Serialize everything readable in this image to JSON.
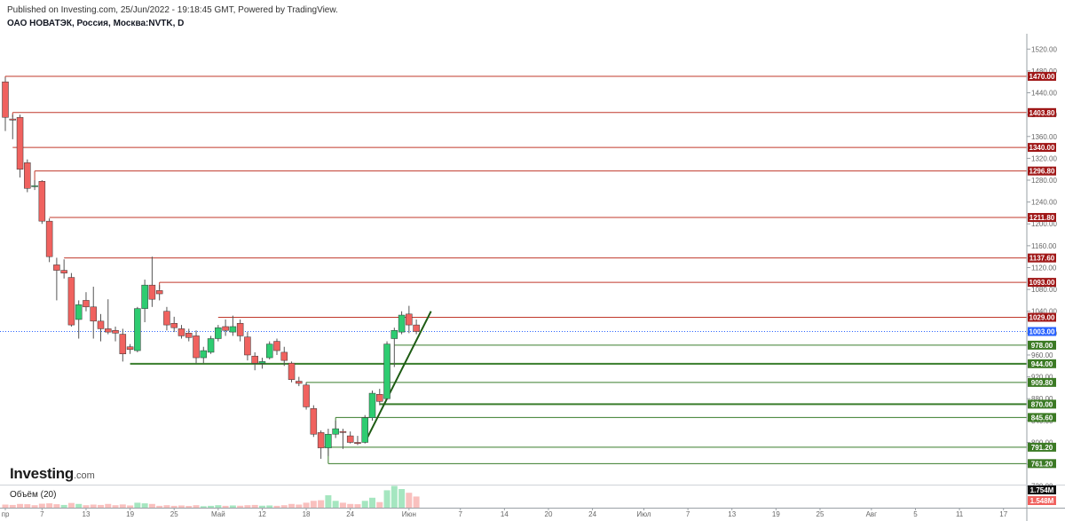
{
  "header": {
    "publish_line": "Published on Investing.com, 25/Jun/2022 - 19:18:45 GMT, Powered by TradingView.",
    "title": "ОАО НОВАТЭК, Россия, Москва:NVTK, D"
  },
  "logo": {
    "brand": "Investing",
    "suffix": ".com"
  },
  "volume_pane": {
    "label": "Объём (20)",
    "tag_high": "1.754M",
    "tag_low": "1.548M"
  },
  "colors": {
    "up": "#2ecc71",
    "down": "#f0625f",
    "resistance": "#c0392b",
    "support": "#3a7d2c",
    "last_price": "#2962ff",
    "wick": "#555555",
    "resistance_tag": "#a01818",
    "support_tag": "#3b7a24",
    "last_tag": "#2962ff"
  },
  "chart_data": {
    "type": "candlestick",
    "y_ticks": [
      "1520.00",
      "1480.00",
      "1440.00",
      "1400.00",
      "1360.00",
      "1320.00",
      "1280.00",
      "1240.00",
      "1200.00",
      "1160.00",
      "1120.00",
      "1080.00",
      "1040.00",
      "1000.00",
      "960.00",
      "920.00",
      "880.00",
      "840.00",
      "800.00",
      "760.00",
      "720.00"
    ],
    "x_ticks": [
      {
        "label": "пр",
        "day": 0
      },
      {
        "label": "7",
        "day": 5
      },
      {
        "label": "13",
        "day": 11
      },
      {
        "label": "19",
        "day": 17
      },
      {
        "label": "25",
        "day": 23
      },
      {
        "label": "Май",
        "day": 29
      },
      {
        "label": "12",
        "day": 35
      },
      {
        "label": "18",
        "day": 41
      },
      {
        "label": "24",
        "day": 47
      },
      {
        "label": "Июн",
        "day": 55
      },
      {
        "label": "7",
        "day": 62
      },
      {
        "label": "14",
        "day": 68
      },
      {
        "label": "20",
        "day": 74
      },
      {
        "label": "24",
        "day": 80
      },
      {
        "label": "Июл",
        "day": 87
      },
      {
        "label": "7",
        "day": 93
      },
      {
        "label": "13",
        "day": 99
      },
      {
        "label": "19",
        "day": 105
      },
      {
        "label": "25",
        "day": 111
      },
      {
        "label": "Авг",
        "day": 118
      },
      {
        "label": "5",
        "day": 124
      },
      {
        "label": "11",
        "day": 130
      },
      {
        "label": "17",
        "day": 136
      }
    ],
    "candles": [
      {
        "d": 0,
        "o": 1460,
        "h": 1468,
        "l": 1370,
        "c": 1395
      },
      {
        "d": 1,
        "o": 1392,
        "h": 1400,
        "l": 1355,
        "c": 1390
      },
      {
        "d": 2,
        "o": 1395,
        "h": 1400,
        "l": 1285,
        "c": 1300
      },
      {
        "d": 3,
        "o": 1312,
        "h": 1318,
        "l": 1258,
        "c": 1265
      },
      {
        "d": 4,
        "o": 1268,
        "h": 1280,
        "l": 1262,
        "c": 1270
      },
      {
        "d": 5,
        "o": 1278,
        "h": 1280,
        "l": 1200,
        "c": 1205
      },
      {
        "d": 6,
        "o": 1205,
        "h": 1210,
        "l": 1130,
        "c": 1140
      },
      {
        "d": 7,
        "o": 1125,
        "h": 1138,
        "l": 1060,
        "c": 1115
      },
      {
        "d": 8,
        "o": 1115,
        "h": 1135,
        "l": 1100,
        "c": 1110
      },
      {
        "d": 9,
        "o": 1102,
        "h": 1110,
        "l": 1012,
        "c": 1015
      },
      {
        "d": 10,
        "o": 1025,
        "h": 1060,
        "l": 990,
        "c": 1052
      },
      {
        "d": 11,
        "o": 1060,
        "h": 1075,
        "l": 1040,
        "c": 1048
      },
      {
        "d": 12,
        "o": 1048,
        "h": 1085,
        "l": 990,
        "c": 1022
      },
      {
        "d": 13,
        "o": 1022,
        "h": 1035,
        "l": 985,
        "c": 1008
      },
      {
        "d": 14,
        "o": 1008,
        "h": 1062,
        "l": 998,
        "c": 1002
      },
      {
        "d": 15,
        "o": 1005,
        "h": 1012,
        "l": 985,
        "c": 1000
      },
      {
        "d": 16,
        "o": 998,
        "h": 1008,
        "l": 948,
        "c": 962
      },
      {
        "d": 17,
        "o": 975,
        "h": 980,
        "l": 962,
        "c": 970
      },
      {
        "d": 18,
        "o": 968,
        "h": 1048,
        "l": 965,
        "c": 1045
      },
      {
        "d": 19,
        "o": 1045,
        "h": 1098,
        "l": 1020,
        "c": 1088
      },
      {
        "d": 20,
        "o": 1088,
        "h": 1140,
        "l": 1048,
        "c": 1062
      },
      {
        "d": 21,
        "o": 1078,
        "h": 1088,
        "l": 1060,
        "c": 1072
      },
      {
        "d": 22,
        "o": 1040,
        "h": 1048,
        "l": 1005,
        "c": 1015
      },
      {
        "d": 23,
        "o": 1018,
        "h": 1030,
        "l": 1002,
        "c": 1010
      },
      {
        "d": 24,
        "o": 1008,
        "h": 1015,
        "l": 990,
        "c": 995
      },
      {
        "d": 25,
        "o": 1000,
        "h": 1008,
        "l": 985,
        "c": 992
      },
      {
        "d": 26,
        "o": 995,
        "h": 1005,
        "l": 945,
        "c": 955
      },
      {
        "d": 27,
        "o": 955,
        "h": 975,
        "l": 945,
        "c": 968
      },
      {
        "d": 28,
        "o": 965,
        "h": 995,
        "l": 962,
        "c": 990
      },
      {
        "d": 29,
        "o": 990,
        "h": 1015,
        "l": 985,
        "c": 1010
      },
      {
        "d": 30,
        "o": 1012,
        "h": 1025,
        "l": 995,
        "c": 1005
      },
      {
        "d": 31,
        "o": 1002,
        "h": 1032,
        "l": 995,
        "c": 1012
      },
      {
        "d": 32,
        "o": 1018,
        "h": 1025,
        "l": 985,
        "c": 995
      },
      {
        "d": 33,
        "o": 993,
        "h": 1002,
        "l": 950,
        "c": 960
      },
      {
        "d": 34,
        "o": 958,
        "h": 965,
        "l": 932,
        "c": 945
      },
      {
        "d": 35,
        "o": 945,
        "h": 955,
        "l": 935,
        "c": 948
      },
      {
        "d": 36,
        "o": 955,
        "h": 985,
        "l": 952,
        "c": 980
      },
      {
        "d": 37,
        "o": 985,
        "h": 990,
        "l": 960,
        "c": 968
      },
      {
        "d": 38,
        "o": 965,
        "h": 975,
        "l": 940,
        "c": 950
      },
      {
        "d": 39,
        "o": 945,
        "h": 948,
        "l": 910,
        "c": 915
      },
      {
        "d": 40,
        "o": 912,
        "h": 920,
        "l": 903,
        "c": 908
      },
      {
        "d": 41,
        "o": 905,
        "h": 910,
        "l": 860,
        "c": 865
      },
      {
        "d": 42,
        "o": 862,
        "h": 868,
        "l": 810,
        "c": 815
      },
      {
        "d": 43,
        "o": 818,
        "h": 822,
        "l": 770,
        "c": 790
      },
      {
        "d": 44,
        "o": 790,
        "h": 825,
        "l": 775,
        "c": 815
      },
      {
        "d": 45,
        "o": 815,
        "h": 840,
        "l": 808,
        "c": 825
      },
      {
        "d": 46,
        "o": 820,
        "h": 825,
        "l": 788,
        "c": 818
      },
      {
        "d": 47,
        "o": 812,
        "h": 820,
        "l": 798,
        "c": 800
      },
      {
        "d": 48,
        "o": 800,
        "h": 812,
        "l": 795,
        "c": 798
      },
      {
        "d": 49,
        "o": 800,
        "h": 850,
        "l": 798,
        "c": 845
      },
      {
        "d": 50,
        "o": 845,
        "h": 895,
        "l": 840,
        "c": 890
      },
      {
        "d": 51,
        "o": 888,
        "h": 898,
        "l": 868,
        "c": 875
      },
      {
        "d": 52,
        "o": 880,
        "h": 985,
        "l": 878,
        "c": 980
      },
      {
        "d": 53,
        "o": 990,
        "h": 1010,
        "l": 938,
        "c": 1005
      },
      {
        "d": 54,
        "o": 1002,
        "h": 1040,
        "l": 998,
        "c": 1033
      },
      {
        "d": 55,
        "o": 1035,
        "h": 1050,
        "l": 1000,
        "c": 1015
      },
      {
        "d": 56,
        "o": 1015,
        "h": 1025,
        "l": 998,
        "c": 1003
      }
    ],
    "resistance_levels": [
      {
        "value": 1470.0,
        "label": "1470.00",
        "from_day": 0
      },
      {
        "value": 1403.8,
        "label": "1403.80",
        "from_day": 1
      },
      {
        "value": 1340.0,
        "label": "1340.00",
        "from_day": 1
      },
      {
        "value": 1296.8,
        "label": "1296.80",
        "from_day": 4
      },
      {
        "value": 1211.8,
        "label": "1211.80",
        "from_day": 6
      },
      {
        "value": 1137.6,
        "label": "1137.60",
        "from_day": 8
      },
      {
        "value": 1093.0,
        "label": "1093.00",
        "from_day": 21
      },
      {
        "value": 1029.0,
        "label": "1029.00",
        "from_day": 29
      }
    ],
    "support_levels": [
      {
        "value": 978.0,
        "label": "978.00",
        "from_day": 53,
        "bold": false
      },
      {
        "value": 944.0,
        "label": "944.00",
        "from_day": 17,
        "bold": true
      },
      {
        "value": 909.8,
        "label": "909.80",
        "from_day": 41,
        "bold": false
      },
      {
        "value": 870.0,
        "label": "870.00",
        "from_day": 51,
        "bold": true
      },
      {
        "value": 845.6,
        "label": "845.60",
        "from_day": 45,
        "bold": false
      },
      {
        "value": 791.2,
        "label": "791.20",
        "from_day": 43,
        "bold": false
      },
      {
        "value": 761.2,
        "label": "761.20",
        "from_day": 44,
        "bold": false
      }
    ],
    "last_price": {
      "value": 1003.0,
      "label": "1003.00"
    },
    "trend_line": {
      "from_day": 49,
      "from_value": 800,
      "to_day": 58,
      "to_value": 1040
    },
    "volume": [
      {
        "d": 0,
        "v": 0.25,
        "up": false
      },
      {
        "d": 1,
        "v": 0.22,
        "up": false
      },
      {
        "d": 2,
        "v": 0.3,
        "up": false
      },
      {
        "d": 3,
        "v": 0.28,
        "up": false
      },
      {
        "d": 4,
        "v": 0.2,
        "up": false
      },
      {
        "d": 5,
        "v": 0.32,
        "up": false
      },
      {
        "d": 6,
        "v": 0.35,
        "up": false
      },
      {
        "d": 7,
        "v": 0.28,
        "up": false
      },
      {
        "d": 8,
        "v": 0.22,
        "up": true
      },
      {
        "d": 9,
        "v": 0.38,
        "up": false
      },
      {
        "d": 10,
        "v": 0.3,
        "up": true
      },
      {
        "d": 11,
        "v": 0.2,
        "up": false
      },
      {
        "d": 12,
        "v": 0.25,
        "up": false
      },
      {
        "d": 13,
        "v": 0.22,
        "up": false
      },
      {
        "d": 14,
        "v": 0.3,
        "up": false
      },
      {
        "d": 15,
        "v": 0.2,
        "up": false
      },
      {
        "d": 16,
        "v": 0.26,
        "up": false
      },
      {
        "d": 17,
        "v": 0.18,
        "up": false
      },
      {
        "d": 18,
        "v": 0.4,
        "up": true
      },
      {
        "d": 19,
        "v": 0.35,
        "up": true
      },
      {
        "d": 20,
        "v": 0.3,
        "up": false
      },
      {
        "d": 21,
        "v": 0.15,
        "up": false
      },
      {
        "d": 22,
        "v": 0.2,
        "up": false
      },
      {
        "d": 23,
        "v": 0.15,
        "up": false
      },
      {
        "d": 24,
        "v": 0.18,
        "up": false
      },
      {
        "d": 25,
        "v": 0.14,
        "up": false
      },
      {
        "d": 26,
        "v": 0.2,
        "up": false
      },
      {
        "d": 27,
        "v": 0.12,
        "up": true
      },
      {
        "d": 28,
        "v": 0.15,
        "up": true
      },
      {
        "d": 29,
        "v": 0.2,
        "up": true
      },
      {
        "d": 30,
        "v": 0.15,
        "up": false
      },
      {
        "d": 31,
        "v": 0.18,
        "up": true
      },
      {
        "d": 32,
        "v": 0.16,
        "up": false
      },
      {
        "d": 33,
        "v": 0.2,
        "up": false
      },
      {
        "d": 34,
        "v": 0.22,
        "up": false
      },
      {
        "d": 35,
        "v": 0.16,
        "up": true
      },
      {
        "d": 36,
        "v": 0.18,
        "up": true
      },
      {
        "d": 37,
        "v": 0.15,
        "up": false
      },
      {
        "d": 38,
        "v": 0.2,
        "up": false
      },
      {
        "d": 39,
        "v": 0.3,
        "up": false
      },
      {
        "d": 40,
        "v": 0.25,
        "up": false
      },
      {
        "d": 41,
        "v": 0.4,
        "up": false
      },
      {
        "d": 42,
        "v": 0.55,
        "up": false
      },
      {
        "d": 43,
        "v": 0.6,
        "up": false
      },
      {
        "d": 44,
        "v": 1.0,
        "up": true
      },
      {
        "d": 45,
        "v": 0.55,
        "up": true
      },
      {
        "d": 46,
        "v": 0.4,
        "up": false
      },
      {
        "d": 47,
        "v": 0.3,
        "up": false
      },
      {
        "d": 48,
        "v": 0.28,
        "up": false
      },
      {
        "d": 49,
        "v": 0.55,
        "up": true
      },
      {
        "d": 50,
        "v": 0.8,
        "up": true
      },
      {
        "d": 51,
        "v": 0.45,
        "up": false
      },
      {
        "d": 52,
        "v": 1.4,
        "up": true
      },
      {
        "d": 53,
        "v": 1.754,
        "up": true
      },
      {
        "d": 54,
        "v": 1.5,
        "up": true
      },
      {
        "d": 55,
        "v": 1.2,
        "up": false
      },
      {
        "d": 56,
        "v": 0.9,
        "up": false
      }
    ]
  }
}
